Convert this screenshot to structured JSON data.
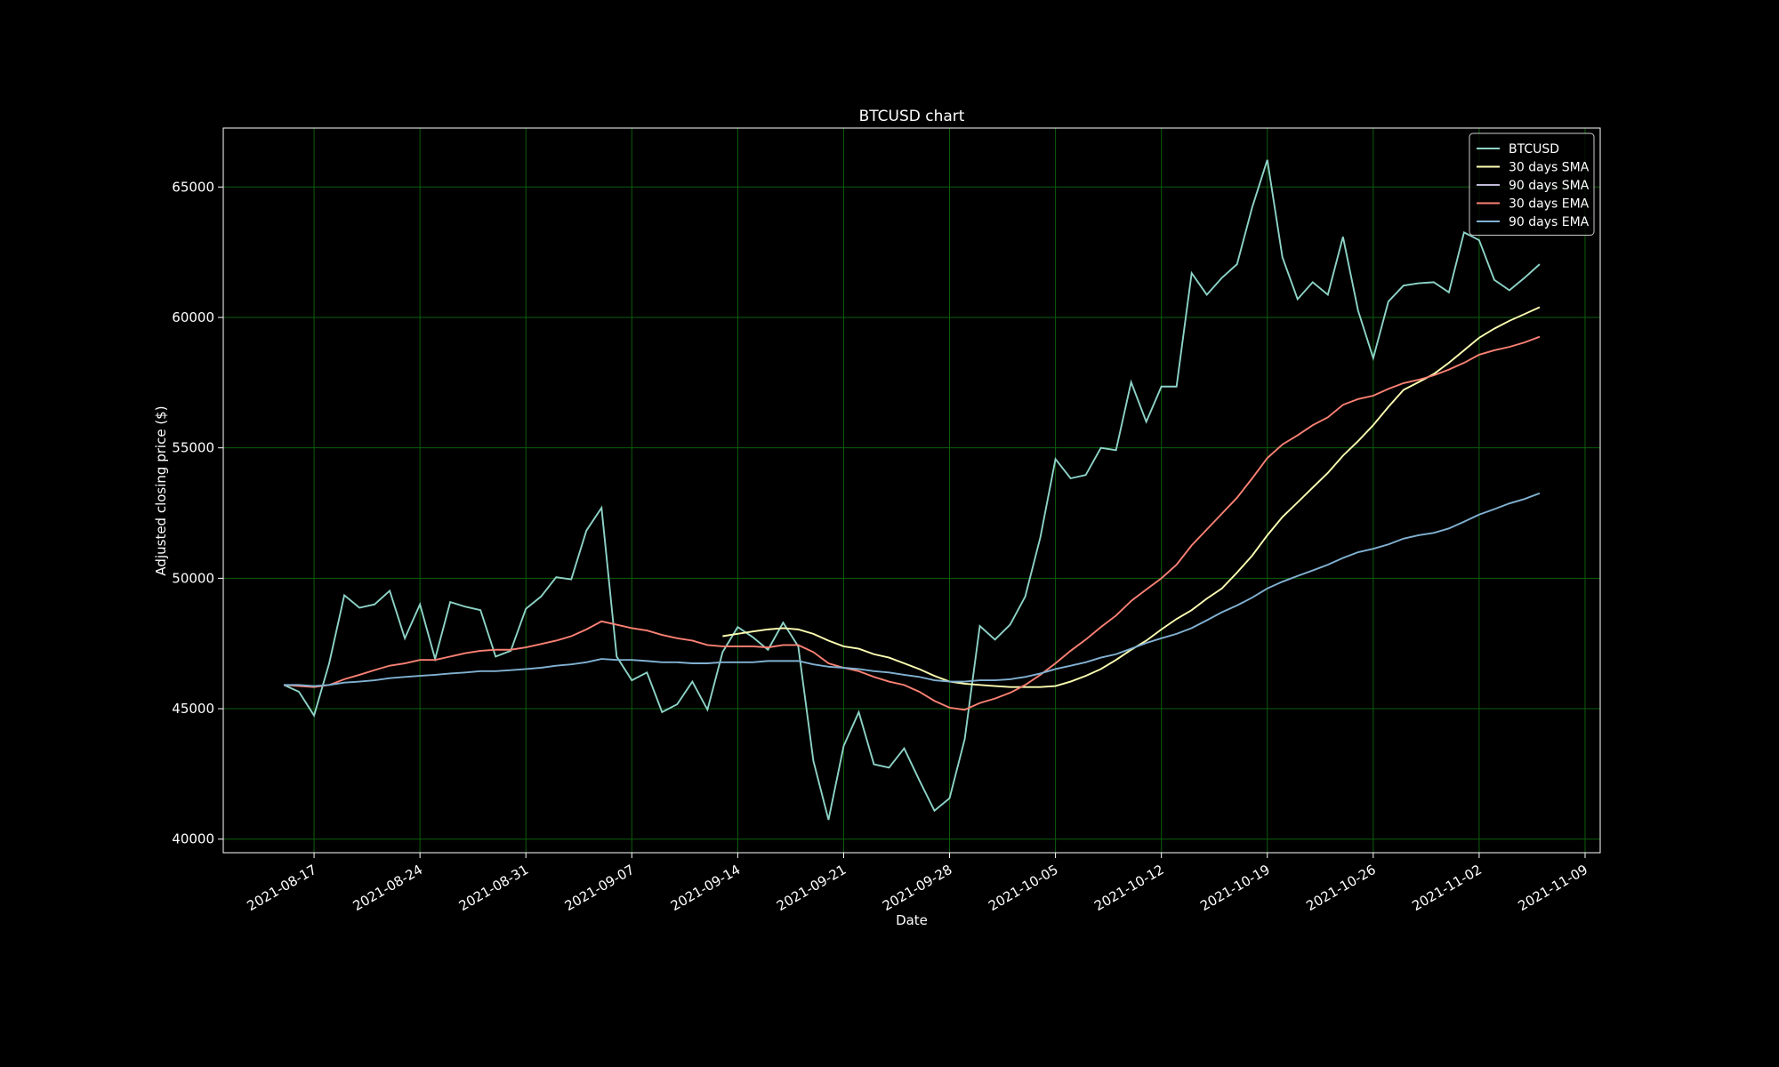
{
  "chart_data": {
    "type": "line",
    "title": "BTCUSD chart",
    "xlabel": "Date",
    "ylabel": "Adjusted closing price ($)",
    "x": [
      "2021-08-15",
      "2021-08-16",
      "2021-08-17",
      "2021-08-18",
      "2021-08-19",
      "2021-08-20",
      "2021-08-21",
      "2021-08-22",
      "2021-08-23",
      "2021-08-24",
      "2021-08-25",
      "2021-08-26",
      "2021-08-27",
      "2021-08-28",
      "2021-08-29",
      "2021-08-30",
      "2021-08-31",
      "2021-09-01",
      "2021-09-02",
      "2021-09-03",
      "2021-09-04",
      "2021-09-05",
      "2021-09-06",
      "2021-09-07",
      "2021-09-08",
      "2021-09-09",
      "2021-09-10",
      "2021-09-11",
      "2021-09-12",
      "2021-09-13",
      "2021-09-14",
      "2021-09-15",
      "2021-09-16",
      "2021-09-17",
      "2021-09-18",
      "2021-09-19",
      "2021-09-20",
      "2021-09-21",
      "2021-09-22",
      "2021-09-23",
      "2021-09-24",
      "2021-09-25",
      "2021-09-26",
      "2021-09-27",
      "2021-09-28",
      "2021-09-29",
      "2021-09-30",
      "2021-10-01",
      "2021-10-02",
      "2021-10-03",
      "2021-10-04",
      "2021-10-05",
      "2021-10-06",
      "2021-10-07",
      "2021-10-08",
      "2021-10-09",
      "2021-10-10",
      "2021-10-11",
      "2021-10-12",
      "2021-10-13",
      "2021-10-14",
      "2021-10-15",
      "2021-10-16",
      "2021-10-17",
      "2021-10-18",
      "2021-10-19",
      "2021-10-20",
      "2021-10-21",
      "2021-10-22",
      "2021-10-23",
      "2021-10-24",
      "2021-10-25",
      "2021-10-26",
      "2021-10-27",
      "2021-10-28",
      "2021-10-29",
      "2021-10-30",
      "2021-10-31",
      "2021-11-01",
      "2021-11-02",
      "2021-11-03",
      "2021-11-04",
      "2021-11-05",
      "2021-11-06"
    ],
    "series": [
      {
        "name": "BTCUSD",
        "color": "#8dd3c7",
        "values": [
          45913,
          45650,
          44740,
          46740,
          49350,
          48870,
          49000,
          49520,
          47700,
          49000,
          46910,
          49090,
          48910,
          48780,
          47000,
          47220,
          48830,
          49300,
          50040,
          49960,
          51830,
          52700,
          47000,
          46090,
          46390,
          44870,
          45170,
          46040,
          44960,
          47170,
          48130,
          47740,
          47260,
          48300,
          47390,
          43000,
          40740,
          43570,
          44870,
          42870,
          42740,
          43480,
          42260,
          41090,
          41570,
          43830,
          48170,
          47650,
          48220,
          49300,
          51570,
          54570,
          53830,
          53960,
          55000,
          54910,
          57520,
          56000,
          57350,
          57350,
          61700,
          60870,
          61520,
          62040,
          64220,
          66040,
          62300,
          60700,
          61350,
          60870,
          63090,
          60260,
          58440,
          60610,
          61220,
          61310,
          61350,
          60960,
          63260,
          62960,
          61440,
          61040,
          61520,
          62040
        ]
      },
      {
        "name": "30 days SMA",
        "color": "#feffb3",
        "values": [
          null,
          null,
          null,
          null,
          null,
          null,
          null,
          null,
          null,
          null,
          null,
          null,
          null,
          null,
          null,
          null,
          null,
          null,
          null,
          null,
          null,
          null,
          null,
          null,
          null,
          null,
          null,
          null,
          null,
          47780,
          47870,
          47960,
          48040,
          48090,
          48040,
          47870,
          47610,
          47390,
          47300,
          47090,
          46960,
          46740,
          46520,
          46260,
          46040,
          45960,
          45910,
          45870,
          45830,
          45830,
          45830,
          45870,
          46040,
          46260,
          46520,
          46870,
          47260,
          47610,
          48040,
          48440,
          48780,
          49220,
          49610,
          50220,
          50870,
          51650,
          52350,
          52910,
          53480,
          54040,
          54700,
          55260,
          55870,
          56570,
          57220,
          57520,
          57830,
          58260,
          58740,
          59220,
          59570,
          59870,
          60130,
          60390
        ]
      },
      {
        "name": "90 days SMA",
        "color": "#bfbbd9",
        "values": [
          null,
          null,
          null,
          null,
          null,
          null,
          null,
          null,
          null,
          null,
          null,
          null,
          null,
          null,
          null,
          null,
          null,
          null,
          null,
          null,
          null,
          null,
          null,
          null,
          null,
          null,
          null,
          null,
          null,
          null,
          null,
          null,
          null,
          null,
          null,
          null,
          null,
          null,
          null,
          null,
          null,
          null,
          null,
          null,
          null,
          null,
          null,
          null,
          null,
          null,
          null,
          null,
          null,
          null,
          null,
          null,
          null,
          null,
          null,
          null,
          null,
          null,
          null,
          null,
          null,
          null,
          null,
          null,
          null,
          null,
          null,
          null,
          null,
          null,
          null,
          null,
          null,
          null,
          null,
          null,
          null,
          null,
          null,
          null
        ]
      },
      {
        "name": "30 days EMA",
        "color": "#fa8174",
        "values": [
          45913,
          45870,
          45830,
          45910,
          46130,
          46300,
          46480,
          46650,
          46740,
          46870,
          46870,
          47000,
          47130,
          47220,
          47260,
          47260,
          47350,
          47480,
          47610,
          47780,
          48040,
          48350,
          48220,
          48090,
          48000,
          47830,
          47700,
          47610,
          47440,
          47390,
          47390,
          47390,
          47350,
          47440,
          47440,
          47170,
          46740,
          46570,
          46440,
          46220,
          46040,
          45910,
          45650,
          45300,
          45040,
          44960,
          45220,
          45390,
          45610,
          45910,
          46300,
          46740,
          47220,
          47650,
          48130,
          48570,
          49130,
          49570,
          50000,
          50520,
          51260,
          51870,
          52480,
          53090,
          53830,
          54610,
          55130,
          55480,
          55870,
          56170,
          56650,
          56870,
          57000,
          57260,
          57480,
          57610,
          57780,
          58000,
          58260,
          58570,
          58740,
          58870,
          59040,
          59260
        ]
      },
      {
        "name": "90 days EMA",
        "color": "#81b1d2",
        "values": [
          45913,
          45910,
          45870,
          45910,
          46000,
          46040,
          46090,
          46170,
          46220,
          46260,
          46300,
          46350,
          46390,
          46440,
          46440,
          46480,
          46520,
          46570,
          46650,
          46700,
          46780,
          46910,
          46870,
          46870,
          46830,
          46780,
          46780,
          46740,
          46740,
          46780,
          46780,
          46780,
          46830,
          46830,
          46830,
          46700,
          46610,
          46570,
          46520,
          46440,
          46390,
          46300,
          46220,
          46090,
          46040,
          46040,
          46090,
          46090,
          46130,
          46220,
          46350,
          46520,
          46650,
          46780,
          46960,
          47090,
          47300,
          47520,
          47700,
          47870,
          48090,
          48390,
          48700,
          48960,
          49260,
          49610,
          49870,
          50090,
          50300,
          50520,
          50780,
          51000,
          51130,
          51300,
          51520,
          51650,
          51740,
          51910,
          52170,
          52440,
          52650,
          52870,
          53040,
          53260
        ]
      }
    ],
    "xlim": [
      "2021-08-11",
      "2021-11-10"
    ],
    "xticks": [
      "2021-08-17",
      "2021-08-24",
      "2021-08-31",
      "2021-09-07",
      "2021-09-14",
      "2021-09-21",
      "2021-09-28",
      "2021-10-05",
      "2021-10-12",
      "2021-10-19",
      "2021-10-26",
      "2021-11-02",
      "2021-11-09"
    ],
    "ylim": [
      39480,
      67260
    ],
    "yticks": [
      40000,
      45000,
      50000,
      55000,
      60000,
      65000
    ],
    "grid": true,
    "grid_color": "#0d5e0d",
    "legend": "upper right"
  }
}
